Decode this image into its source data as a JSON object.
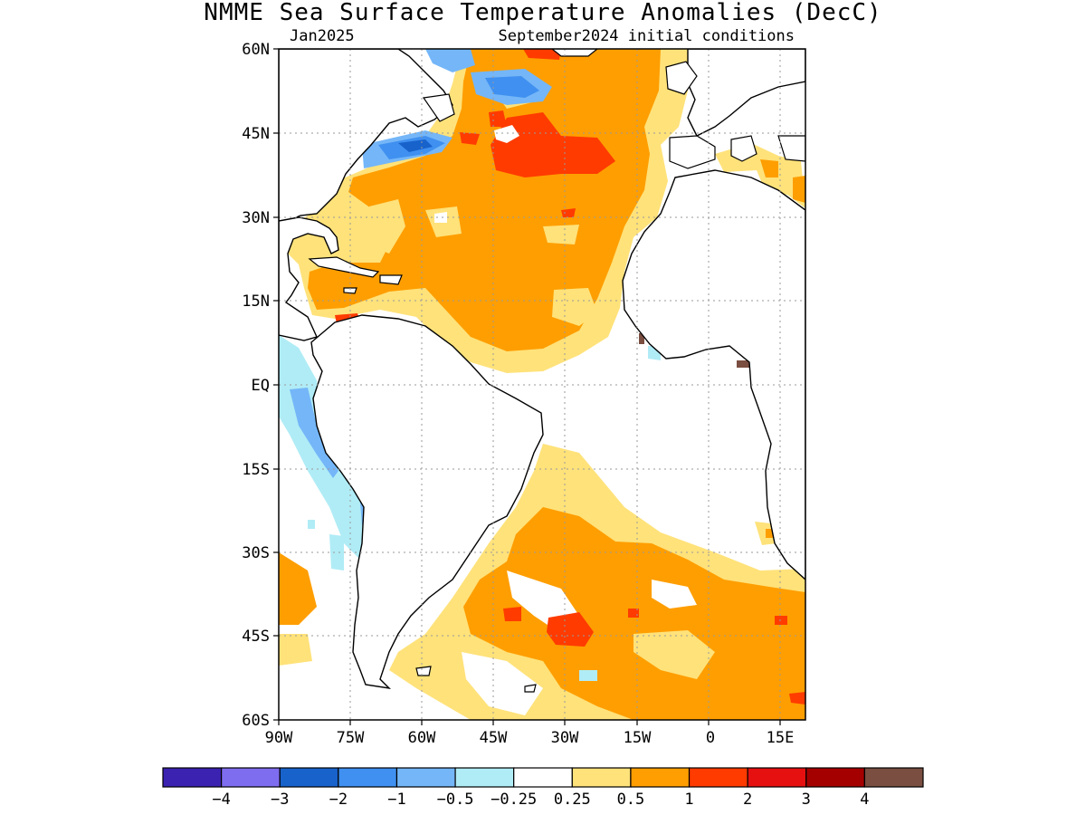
{
  "title": "NMME Sea Surface Temperature Anomalies (DecC)",
  "subtitle_left": "Jan2025",
  "subtitle_right": "September2024 initial conditions",
  "map": {
    "region": "Atlantic Ocean",
    "lon_range": [
      -90,
      20
    ],
    "lat_range": [
      -60,
      60
    ],
    "lat_ticks": [
      "60N",
      "45N",
      "30N",
      "15N",
      "EQ",
      "15S",
      "30S",
      "45S",
      "60S"
    ],
    "lon_ticks": [
      "90W",
      "75W",
      "60W",
      "45W",
      "30W",
      "15W",
      "0",
      "15E"
    ],
    "grid": "dotted"
  },
  "colorbar": {
    "colors": [
      "#3b22b0",
      "#7f6df0",
      "#1862cc",
      "#3f90f0",
      "#74b6f8",
      "#b0ecf6",
      "#ffffff",
      "#ffe27a",
      "#ff9e00",
      "#ff3b00",
      "#e61010",
      "#a50000",
      "#7a4e41"
    ],
    "labels": [
      "−4",
      "−3",
      "−2",
      "−1",
      "−0.5",
      "−0.25",
      "0.25",
      "0.5",
      "1",
      "2",
      "3",
      "4"
    ]
  },
  "colors": {
    "ocean_neutral": "#ffffff",
    "coast": "#000000",
    "grid": "#9a9a9a"
  }
}
